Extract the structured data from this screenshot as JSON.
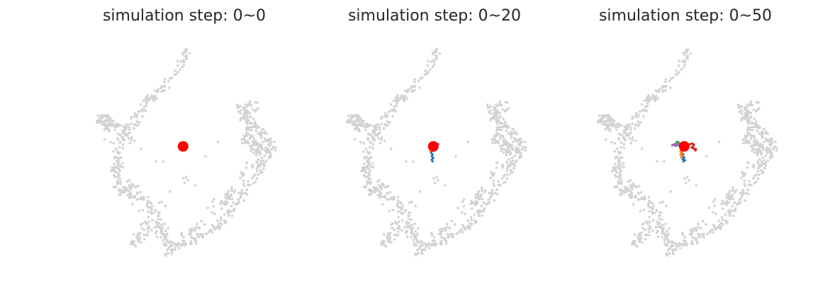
{
  "chart_data": [
    {
      "type": "scatter",
      "title": "simulation step: 0~0",
      "step_range": [
        0,
        0
      ],
      "background_color": "#d3d3d3",
      "start_color": "#ff0000",
      "start_point": [
        6.8,
        5.7
      ],
      "trajectories": []
    },
    {
      "type": "scatter",
      "title": "simulation step: 0~20",
      "step_range": [
        0,
        20
      ],
      "background_color": "#d3d3d3",
      "start_color": "#ff0000",
      "start_point": [
        6.8,
        5.7
      ],
      "trajectories": [
        {
          "color": "#1f77b4",
          "points": [
            [
              6.8,
              5.7
            ],
            [
              6.75,
              5.35
            ],
            [
              6.65,
              5.15
            ],
            [
              6.75,
              5.0
            ],
            [
              6.7,
              4.85
            ],
            [
              6.8,
              4.7
            ],
            [
              6.7,
              4.55
            ],
            [
              6.75,
              4.4
            ]
          ]
        },
        {
          "color": "#ff7f0e",
          "points": [
            [
              6.8,
              5.7
            ],
            [
              6.72,
              5.55
            ],
            [
              6.65,
              5.45
            ],
            [
              6.72,
              5.35
            ],
            [
              6.62,
              5.28
            ]
          ]
        },
        {
          "color": "#2ca02c",
          "points": [
            [
              6.8,
              5.7
            ],
            [
              6.7,
              5.85
            ],
            [
              6.6,
              5.95
            ]
          ]
        },
        {
          "color": "#d62728",
          "points": [
            [
              6.8,
              5.7
            ],
            [
              6.9,
              5.8
            ],
            [
              6.85,
              5.95
            ]
          ]
        },
        {
          "color": "#9467bd",
          "points": [
            [
              6.8,
              5.7
            ],
            [
              6.95,
              5.75
            ],
            [
              7.05,
              5.85
            ],
            [
              7.15,
              5.9
            ]
          ]
        }
      ]
    },
    {
      "type": "scatter",
      "title": "simulation step: 0~50",
      "step_range": [
        0,
        50
      ],
      "background_color": "#d3d3d3",
      "start_color": "#ff0000",
      "start_point": [
        6.8,
        5.7
      ],
      "trajectories": [
        {
          "color": "#1f77b4",
          "points": [
            [
              6.8,
              5.7
            ],
            [
              6.7,
              5.4
            ],
            [
              6.6,
              5.2
            ],
            [
              6.75,
              5.0
            ],
            [
              6.65,
              4.85
            ],
            [
              6.8,
              4.75
            ],
            [
              6.7,
              4.6
            ],
            [
              6.85,
              4.5
            ],
            [
              6.75,
              4.4
            ]
          ]
        },
        {
          "color": "#ff7f0e",
          "points": [
            [
              6.8,
              5.7
            ],
            [
              6.65,
              5.5
            ],
            [
              6.55,
              5.3
            ],
            [
              6.65,
              5.15
            ],
            [
              6.55,
              5.0
            ],
            [
              6.7,
              4.9
            ],
            [
              6.6,
              4.75
            ]
          ]
        },
        {
          "color": "#2ca02c",
          "points": [
            [
              6.8,
              5.7
            ],
            [
              6.65,
              5.85
            ],
            [
              6.5,
              5.95
            ],
            [
              6.4,
              6.05
            ],
            [
              6.3,
              6.1
            ]
          ]
        },
        {
          "color": "#d62728",
          "points": [
            [
              6.8,
              5.7
            ],
            [
              7.0,
              5.85
            ],
            [
              7.2,
              5.9
            ],
            [
              7.35,
              5.95
            ],
            [
              7.45,
              5.85
            ],
            [
              7.4,
              5.7
            ],
            [
              7.3,
              5.6
            ],
            [
              7.45,
              5.5
            ],
            [
              7.6,
              5.45
            ],
            [
              7.55,
              5.35
            ]
          ]
        },
        {
          "color": "#9467bd",
          "points": [
            [
              6.8,
              5.7
            ],
            [
              6.6,
              5.75
            ],
            [
              6.4,
              5.8
            ],
            [
              6.2,
              5.75
            ],
            [
              6.1,
              5.85
            ],
            [
              6.0,
              5.8
            ],
            [
              6.15,
              5.9
            ],
            [
              6.3,
              5.95
            ]
          ]
        },
        {
          "color": "#8c564b",
          "points": [
            [
              6.8,
              5.7
            ],
            [
              6.7,
              5.8
            ],
            [
              6.55,
              5.85
            ]
          ]
        }
      ]
    }
  ],
  "embedding_outline": [
    [
      0.8,
      7.9
    ],
    [
      1.5,
      7.8
    ],
    [
      2.2,
      7.6
    ],
    [
      2.9,
      7.3
    ],
    [
      3.4,
      7.4
    ],
    [
      3.8,
      8.4
    ],
    [
      4.2,
      9.3
    ],
    [
      4.5,
      9.9
    ],
    [
      5.2,
      10.4
    ],
    [
      5.9,
      11.3
    ],
    [
      6.5,
      12.3
    ],
    [
      6.9,
      13.4
    ],
    [
      7.2,
      14.1
    ],
    [
      4.8,
      9.8
    ],
    [
      4.6,
      9.9
    ],
    [
      2.7,
      7.1
    ],
    [
      2.6,
      6.4
    ],
    [
      2.6,
      5.6
    ],
    [
      2.45,
      4.8
    ],
    [
      2.3,
      4.0
    ],
    [
      2.3,
      3.2
    ],
    [
      2.4,
      2.4
    ],
    [
      2.6,
      1.8
    ],
    [
      3.0,
      1.7
    ],
    [
      3.6,
      1.5
    ],
    [
      4.2,
      1.2
    ],
    [
      4.6,
      0.6
    ],
    [
      4.9,
      -0.1
    ],
    [
      5.2,
      -0.9
    ],
    [
      5.5,
      -1.5
    ],
    [
      5.7,
      -2.1
    ],
    [
      5.9,
      -2.7
    ],
    [
      6.2,
      -3.0
    ],
    [
      6.6,
      -2.9
    ],
    [
      7.1,
      -2.6
    ],
    [
      7.7,
      -2.3
    ],
    [
      8.3,
      -1.9
    ],
    [
      8.8,
      -1.5
    ],
    [
      9.2,
      -1.0
    ],
    [
      9.6,
      -0.5
    ],
    [
      10.0,
      0.1
    ],
    [
      10.4,
      0.8
    ],
    [
      10.8,
      1.5
    ],
    [
      11.2,
      2.3
    ],
    [
      11.6,
      3.1
    ],
    [
      12.0,
      3.9
    ],
    [
      12.3,
      4.6
    ],
    [
      12.6,
      5.2
    ],
    [
      12.8,
      5.8
    ],
    [
      12.5,
      6.2
    ],
    [
      12.2,
      6.6
    ],
    [
      11.9,
      7.0
    ],
    [
      11.6,
      7.5
    ],
    [
      11.4,
      8.0
    ],
    [
      11.1,
      8.5
    ],
    [
      10.8,
      9.0
    ],
    [
      10.5,
      9.5
    ],
    [
      11.5,
      6.0
    ],
    [
      12.0,
      5.2
    ],
    [
      11.2,
      5.6
    ],
    [
      10.8,
      6.4
    ],
    [
      11.2,
      7.3
    ],
    [
      10.8,
      8.3
    ],
    [
      11.8,
      8.8
    ],
    [
      11.4,
      9.4
    ],
    [
      4.3,
      -0.8
    ],
    [
      3.9,
      -1.6
    ],
    [
      3.6,
      -2.4
    ],
    [
      3.4,
      -3.1
    ],
    [
      4.6,
      -1.4
    ],
    [
      5.3,
      -1.9
    ],
    [
      5.8,
      -3.3
    ],
    [
      5.9,
      -3.6
    ],
    [
      3.1,
      1.9
    ],
    [
      3.3,
      2.4
    ],
    [
      3.6,
      2.1
    ],
    [
      2.2,
      3.6
    ],
    [
      2.6,
      3.8
    ],
    [
      1.4,
      7.5
    ],
    [
      1.9,
      7.3
    ],
    [
      2.1,
      8.0
    ],
    [
      1.6,
      8.3
    ],
    [
      1.2,
      8.0
    ],
    [
      3.0,
      6.8
    ],
    [
      3.4,
      6.2
    ],
    [
      9.4,
      0.6
    ],
    [
      9.8,
      1.2
    ],
    [
      10.2,
      1.9
    ],
    [
      8.5,
      -0.8
    ],
    [
      7.4,
      -1.7
    ],
    [
      6.6,
      -2.2
    ],
    [
      10.6,
      2.6
    ],
    [
      11.0,
      4.0
    ],
    [
      11.9,
      4.3
    ],
    [
      11.4,
      6.9
    ],
    [
      12.3,
      5.5
    ],
    [
      11.7,
      5.8
    ]
  ]
}
